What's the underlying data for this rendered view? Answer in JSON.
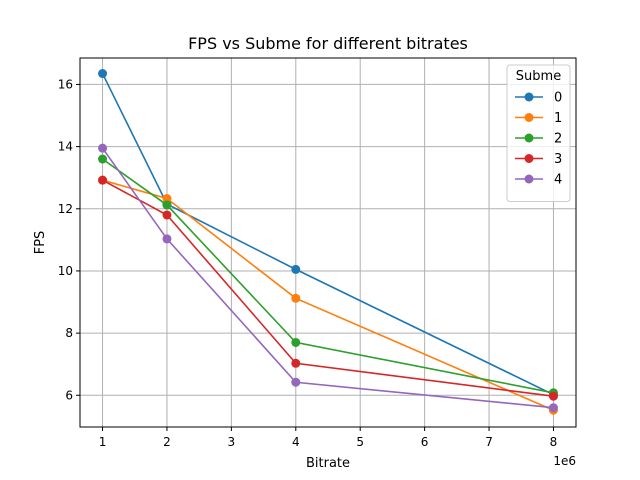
{
  "chart_data": {
    "type": "line",
    "title": "FPS vs Subme for different bitrates",
    "xlabel": "Bitrate",
    "ylabel": "FPS",
    "x_offset_text": "1e6",
    "x": [
      1,
      2,
      4,
      8
    ],
    "xlim": [
      0.65,
      8.35
    ],
    "ylim": [
      4.98,
      16.85
    ],
    "xticks": [
      1,
      2,
      3,
      4,
      5,
      6,
      7,
      8
    ],
    "yticks": [
      6,
      8,
      10,
      12,
      14,
      16
    ],
    "grid": true,
    "legend": {
      "title": "Subme",
      "placement": "top-right"
    },
    "series": [
      {
        "name": "0",
        "color": "#1f77b4",
        "values": [
          16.35,
          12.15,
          10.05,
          6.02
        ]
      },
      {
        "name": "1",
        "color": "#ff7f0e",
        "values": [
          12.92,
          12.33,
          9.12,
          5.52
        ]
      },
      {
        "name": "2",
        "color": "#2ca02c",
        "values": [
          13.6,
          12.12,
          7.7,
          6.08
        ]
      },
      {
        "name": "3",
        "color": "#d62728",
        "values": [
          12.92,
          11.8,
          7.03,
          5.97
        ]
      },
      {
        "name": "4",
        "color": "#9467bd",
        "values": [
          13.95,
          11.03,
          6.42,
          5.6
        ]
      }
    ]
  }
}
